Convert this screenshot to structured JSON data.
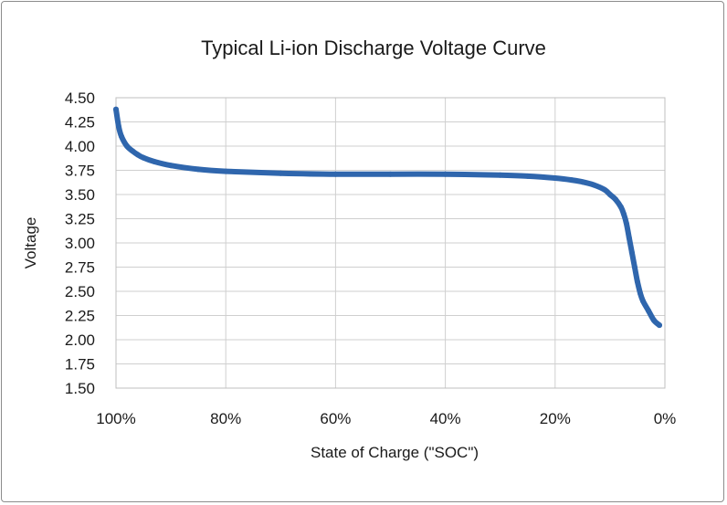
{
  "chart_data": {
    "type": "line",
    "title": "Typical Li-ion Discharge Voltage Curve",
    "xlabel": "State of Charge (\"SOC\")",
    "ylabel": "Voltage",
    "xlim": [
      100,
      0
    ],
    "ylim": [
      1.5,
      4.5
    ],
    "grid": true,
    "x_ticks": [
      100,
      80,
      60,
      40,
      20,
      0
    ],
    "x_tick_labels": [
      "100%",
      "80%",
      "60%",
      "40%",
      "20%",
      "0%"
    ],
    "y_ticks": [
      4.5,
      4.25,
      4.0,
      3.75,
      3.5,
      3.25,
      3.0,
      2.75,
      2.5,
      2.25,
      2.0,
      1.75,
      1.5
    ],
    "y_tick_labels": [
      "4.50",
      "4.25",
      "4.00",
      "3.75",
      "3.50",
      "3.25",
      "3.00",
      "2.75",
      "2.50",
      "2.25",
      "2.00",
      "1.75",
      "1.50"
    ],
    "line_color": "#2f66ad",
    "series": [
      {
        "x": [
          100,
          99.5,
          99,
          98,
          97,
          96,
          95,
          93,
          90,
          85,
          80,
          70,
          60,
          50,
          40,
          30,
          25,
          20,
          17,
          15,
          13,
          11,
          10,
          9,
          8,
          7.5,
          7,
          6.5,
          6,
          5.5,
          5,
          4.5,
          4,
          3,
          2,
          1
        ],
        "y": [
          4.38,
          4.2,
          4.1,
          4.0,
          3.95,
          3.91,
          3.88,
          3.84,
          3.8,
          3.76,
          3.74,
          3.72,
          3.71,
          3.71,
          3.71,
          3.7,
          3.69,
          3.67,
          3.65,
          3.63,
          3.6,
          3.55,
          3.5,
          3.45,
          3.37,
          3.3,
          3.2,
          3.05,
          2.9,
          2.75,
          2.6,
          2.48,
          2.4,
          2.3,
          2.2,
          2.15
        ]
      }
    ]
  }
}
